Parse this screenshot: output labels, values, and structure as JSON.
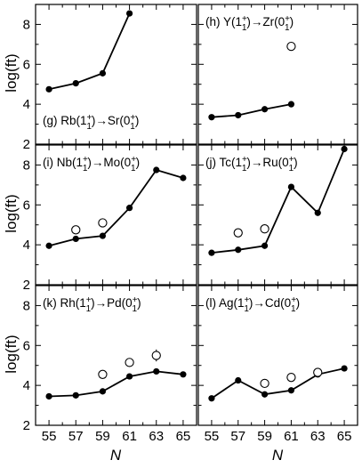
{
  "y_axis_label": "log(ft)",
  "x_axis_label": "N",
  "x_ticks": [
    55,
    57,
    59,
    61,
    63,
    65
  ],
  "y_ticks": [
    2,
    4,
    6,
    8
  ],
  "chart_data": [
    {
      "type": "line",
      "label": {
        "pre": "(g) Rb(1",
        "sup1": "+",
        "sub1": "1",
        "mid": ")→Sr(0",
        "sup2": "+",
        "sub2": "1",
        "post": ")"
      },
      "xlim": [
        54,
        66
      ],
      "ylim": [
        2,
        9
      ],
      "series": [
        {
          "marker": "filled",
          "connected": true,
          "points": [
            [
              55,
              4.75
            ],
            [
              57,
              5.05
            ],
            [
              59,
              5.55
            ],
            [
              61,
              8.55
            ]
          ]
        }
      ]
    },
    {
      "type": "line",
      "label": {
        "pre": "(h) Y(1",
        "sup1": "+",
        "sub1": "1",
        "mid": ")→Zr(0",
        "sup2": "+",
        "sub2": "1",
        "post": ")"
      },
      "xlim": [
        54,
        66
      ],
      "ylim": [
        2,
        9
      ],
      "series": [
        {
          "marker": "filled",
          "connected": true,
          "points": [
            [
              55,
              3.35
            ],
            [
              57,
              3.45
            ],
            [
              59,
              3.75
            ],
            [
              61,
              4.0
            ]
          ]
        },
        {
          "marker": "open",
          "connected": false,
          "points": [
            [
              61,
              6.9
            ]
          ]
        }
      ]
    },
    {
      "type": "line",
      "label": {
        "pre": "(i) Nb(1",
        "sup1": "+",
        "sub1": "1",
        "mid": ")→Mo(0",
        "sup2": "+",
        "sub2": "1",
        "post": ")"
      },
      "xlim": [
        54,
        66
      ],
      "ylim": [
        2,
        9
      ],
      "series": [
        {
          "marker": "filled",
          "connected": true,
          "points": [
            [
              55,
              3.95
            ],
            [
              57,
              4.3
            ],
            [
              59,
              4.45
            ],
            [
              61,
              5.85
            ],
            [
              63,
              7.75
            ],
            [
              65,
              7.35
            ]
          ]
        },
        {
          "marker": "open",
          "connected": false,
          "points": [
            [
              57,
              4.75
            ],
            [
              59,
              5.1
            ]
          ]
        }
      ]
    },
    {
      "type": "line",
      "label": {
        "pre": "(j) Tc(1",
        "sup1": "+",
        "sub1": "1",
        "mid": ")→Ru(0",
        "sup2": "+",
        "sub2": "1",
        "post": ")"
      },
      "xlim": [
        54,
        66
      ],
      "ylim": [
        2,
        9
      ],
      "series": [
        {
          "marker": "filled",
          "connected": true,
          "points": [
            [
              55,
              3.6
            ],
            [
              57,
              3.75
            ],
            [
              59,
              3.95
            ],
            [
              61,
              6.9
            ],
            [
              63,
              5.6
            ],
            [
              65,
              8.8
            ]
          ]
        },
        {
          "marker": "open",
          "connected": false,
          "points": [
            [
              57,
              4.6
            ],
            [
              59,
              4.8
            ]
          ]
        }
      ]
    },
    {
      "type": "line",
      "label": {
        "pre": "(k) Rh(1",
        "sup1": "+",
        "sub1": "1",
        "mid": ")→Pd(0",
        "sup2": "+",
        "sub2": "1",
        "post": ")"
      },
      "xlim": [
        54,
        66
      ],
      "ylim": [
        2,
        9
      ],
      "series": [
        {
          "marker": "filled",
          "connected": true,
          "points": [
            [
              55,
              3.45
            ],
            [
              57,
              3.5
            ],
            [
              59,
              3.7
            ],
            [
              61,
              4.45
            ],
            [
              63,
              4.7
            ],
            [
              65,
              4.55
            ]
          ]
        },
        {
          "marker": "open",
          "connected": false,
          "points": [
            [
              59,
              4.55
            ],
            [
              61,
              5.15
            ],
            [
              63,
              5.5
            ]
          ],
          "error": [
            0,
            0,
            0.3
          ]
        }
      ]
    },
    {
      "type": "line",
      "label": {
        "pre": "(l) Ag(1",
        "sup1": "+",
        "sub1": "1",
        "mid": ")→Cd(0",
        "sup2": "+",
        "sub2": "1",
        "post": ")"
      },
      "xlim": [
        54,
        66
      ],
      "ylim": [
        2,
        9
      ],
      "series": [
        {
          "marker": "filled",
          "connected": true,
          "points": [
            [
              55,
              3.35
            ],
            [
              57,
              4.25
            ],
            [
              59,
              3.55
            ],
            [
              61,
              3.75
            ],
            [
              63,
              4.55
            ],
            [
              65,
              4.85
            ]
          ]
        },
        {
          "marker": "open",
          "connected": false,
          "points": [
            [
              59,
              4.1
            ],
            [
              61,
              4.4
            ],
            [
              63,
              4.65
            ]
          ]
        }
      ]
    }
  ]
}
